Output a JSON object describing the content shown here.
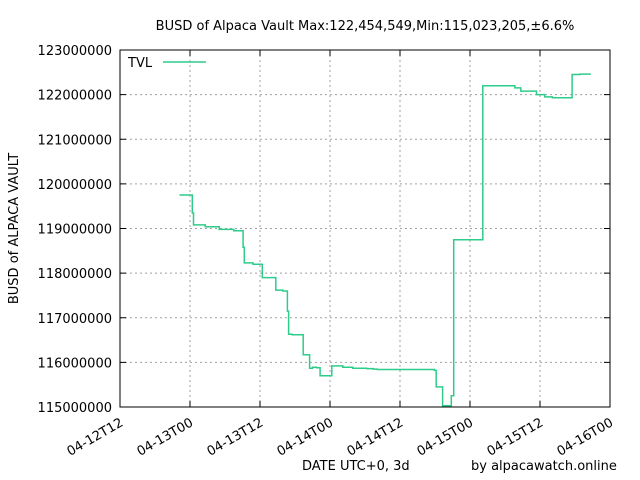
{
  "chart_data": {
    "type": "line",
    "title": "BUSD of Alpaca Vault Max:122,454,549,Min:115,023,205,±6.6%",
    "xlabel": "DATE UTC+0, 3d",
    "ylabel": "BUSD of ALPACA VAULT",
    "credit": "by alpacawatch.online",
    "legend": {
      "position": "top-left",
      "entries": [
        "TVL"
      ]
    },
    "grid": true,
    "x_unit": "hours since 04-12T12",
    "xlim": [
      0,
      84
    ],
    "ylim": [
      115000000,
      123000000
    ],
    "x_tick_labels": [
      "04-12T12",
      "04-13T00",
      "04-13T12",
      "04-14T00",
      "04-14T12",
      "04-15T00",
      "04-15T12",
      "04-16T00"
    ],
    "y_tick_labels": [
      "115000000",
      "116000000",
      "117000000",
      "118000000",
      "119000000",
      "120000000",
      "121000000",
      "122000000",
      "123000000"
    ],
    "color": "#2ecc8a",
    "series": [
      {
        "name": "TVL",
        "style": "step",
        "x": [
          10.2,
          12.3,
          12.4,
          12.6,
          14.6,
          17.0,
          19.5,
          20.7,
          21.1,
          21.3,
          22.8,
          24.4,
          24.8,
          25.1,
          26.7,
          27.9,
          28.7,
          28.9,
          29.5,
          30.0,
          31.4,
          32.5,
          33.0,
          33.7,
          34.3,
          36.3,
          38.2,
          39.9,
          42.3,
          43.4,
          44.1,
          53.9,
          54.2,
          55.3,
          56.5,
          56.8,
          57.0,
          57.2,
          62.2,
          63.0,
          63.3,
          64.6,
          67.7,
          68.7,
          71.4,
          72.8,
          74.1,
          76.0,
          77.5,
          78.8,
          80.7
        ],
        "y": [
          119750000,
          119750000,
          119350000,
          119080000,
          119040000,
          118980000,
          118950000,
          118950000,
          118580000,
          118230000,
          118200000,
          117900000,
          117900000,
          117900000,
          117620000,
          117600000,
          117150000,
          116630000,
          116620000,
          116620000,
          116170000,
          115870000,
          115890000,
          115880000,
          115700000,
          115920000,
          115890000,
          115870000,
          115860000,
          115850000,
          115840000,
          115820000,
          115450000,
          115030000,
          115020000,
          115250000,
          115250000,
          118750000,
          122200000,
          122200000,
          122200000,
          122200000,
          122150000,
          122080000,
          122000000,
          121950000,
          121930000,
          121930000,
          122450000,
          122460000,
          122460000
        ]
      }
    ]
  }
}
